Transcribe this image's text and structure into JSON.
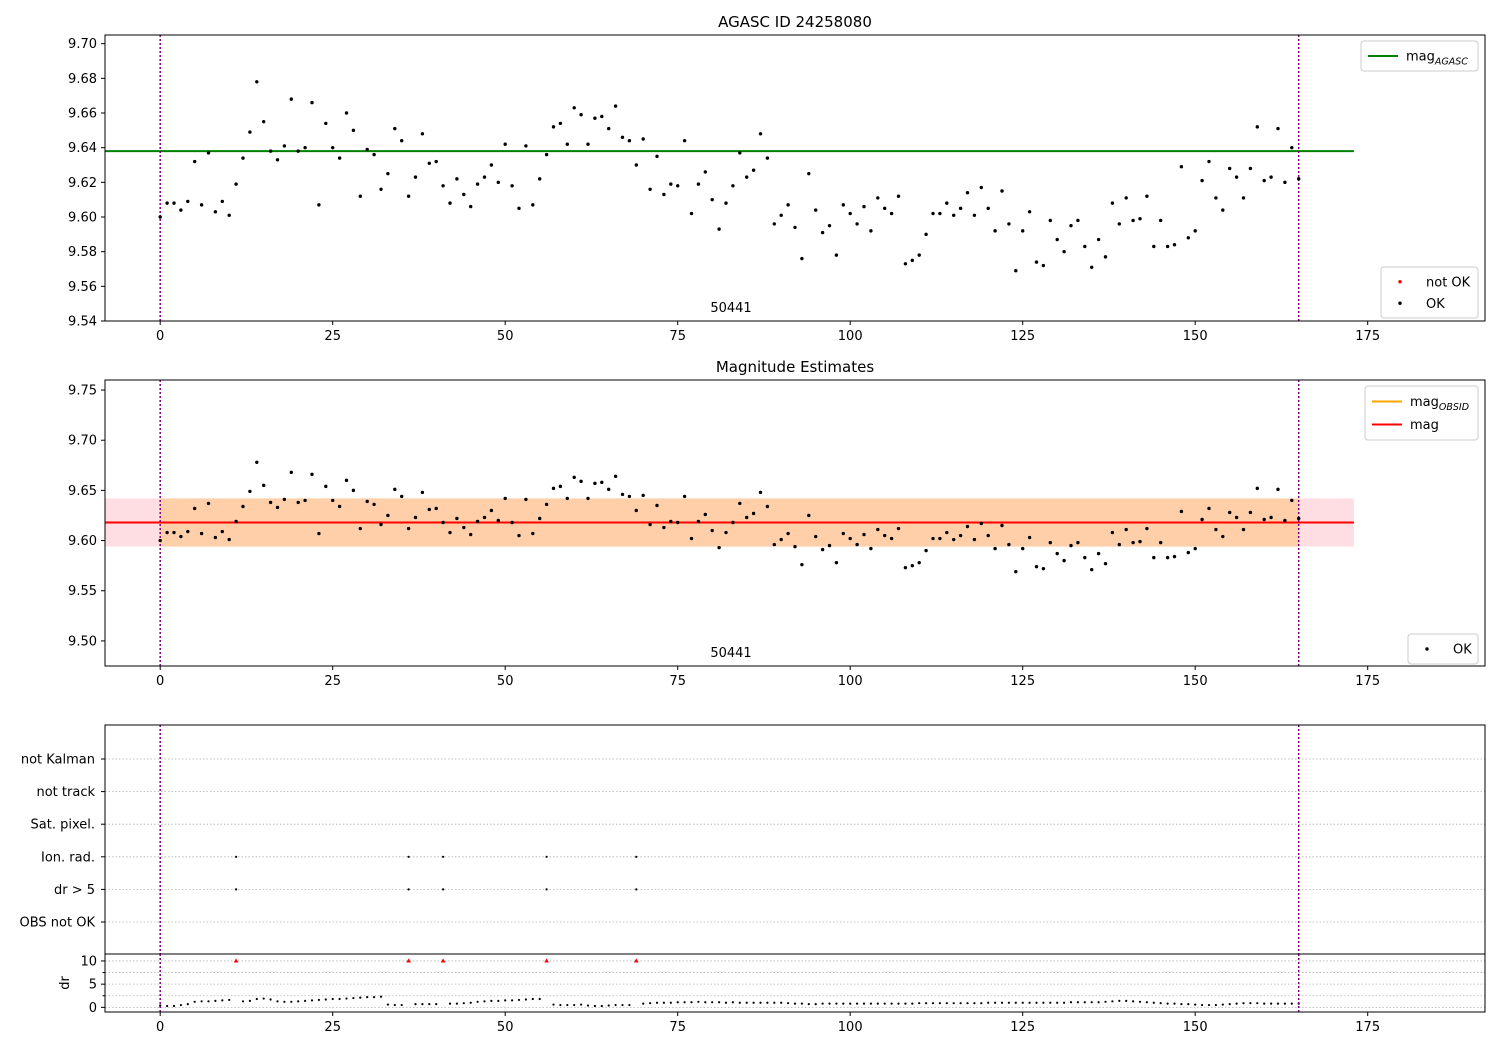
{
  "chart_data": [
    {
      "type": "scatter",
      "title": "AGASC ID 24258080",
      "annotation": "50441",
      "xlim": [
        -8,
        192
      ],
      "ylim": [
        9.54,
        9.705
      ],
      "xticks": [
        0,
        25,
        50,
        75,
        100,
        125,
        150,
        175
      ],
      "yticks": [
        9.54,
        9.56,
        9.58,
        9.6,
        9.62,
        9.64,
        9.66,
        9.68,
        9.7
      ],
      "ytick_decimals": 2,
      "obs_boundaries": [
        0,
        165
      ],
      "lines": [
        {
          "name": "mag",
          "sub": "AGASC",
          "value": 9.638,
          "x_range": [
            -8,
            173
          ],
          "color": "#008000"
        }
      ],
      "legend_upper": [
        {
          "name": "mag",
          "sub": "AGASC",
          "color": "#008000",
          "kind": "line"
        }
      ],
      "legend_lower": [
        {
          "name": "not OK",
          "color": "#ff0000",
          "kind": "marker"
        },
        {
          "name": "OK",
          "color": "#000000",
          "kind": "marker"
        }
      ],
      "series": [
        {
          "name": "OK",
          "color": "#000000",
          "values": [
            9.6,
            9.608,
            9.608,
            9.604,
            9.609,
            9.632,
            9.607,
            9.637,
            9.603,
            9.609,
            9.601,
            9.619,
            9.634,
            9.649,
            9.678,
            9.655,
            9.638,
            9.633,
            9.641,
            9.668,
            9.638,
            9.64,
            9.666,
            9.607,
            9.654,
            9.64,
            9.634,
            9.66,
            9.65,
            9.612,
            9.639,
            9.636,
            9.616,
            9.625,
            9.651,
            9.644,
            9.612,
            9.623,
            9.648,
            9.631,
            9.632,
            9.618,
            9.608,
            9.622,
            9.613,
            9.606,
            9.619,
            9.623,
            9.63,
            9.62,
            9.642,
            9.618,
            9.605,
            9.641,
            9.607,
            9.622,
            9.636,
            9.652,
            9.654,
            9.642,
            9.663,
            9.659,
            9.642,
            9.657,
            9.658,
            9.651,
            9.664,
            9.646,
            9.644,
            9.63,
            9.645,
            9.616,
            9.635,
            9.613,
            9.619,
            9.618,
            9.644,
            9.602,
            9.619,
            9.626,
            9.61,
            9.593,
            9.608,
            9.618,
            9.637,
            9.623,
            9.627,
            9.648,
            9.634,
            9.596,
            9.601,
            9.607,
            9.594,
            9.576,
            9.625,
            9.604,
            9.591,
            9.595,
            9.578,
            9.607,
            9.602,
            9.596,
            9.606,
            9.592,
            9.611,
            9.605,
            9.602,
            9.612,
            9.573,
            9.575,
            9.578,
            9.59,
            9.602,
            9.602,
            9.608,
            9.601,
            9.605,
            9.614,
            9.601,
            9.617,
            9.605,
            9.592,
            9.615,
            9.596,
            9.569,
            9.592,
            9.603,
            9.574,
            9.572,
            9.598,
            9.587,
            9.58,
            9.595,
            9.598,
            9.583,
            9.571,
            9.587,
            9.577,
            9.608,
            9.596,
            9.611,
            9.598,
            9.599,
            9.612,
            9.583,
            9.598,
            9.583,
            9.584,
            9.629,
            9.588,
            9.592,
            9.621,
            9.632,
            9.611,
            9.604,
            9.628,
            9.623,
            9.611,
            9.628,
            9.652,
            9.621,
            9.623,
            9.651,
            9.62,
            9.64,
            9.622
          ]
        }
      ]
    },
    {
      "type": "scatter",
      "title": "Magnitude Estimates",
      "annotation": "50441",
      "xlim": [
        -8,
        192
      ],
      "ylim": [
        9.475,
        9.76
      ],
      "xticks": [
        0,
        25,
        50,
        75,
        100,
        125,
        150,
        175
      ],
      "yticks": [
        9.5,
        9.55,
        9.6,
        9.65,
        9.7,
        9.75
      ],
      "ytick_decimals": 2,
      "obs_boundaries": [
        0,
        165
      ],
      "bands": [
        {
          "name": "mag range",
          "y_range": [
            9.594,
            9.642
          ],
          "x_range": [
            -8,
            173
          ],
          "color": "#ffb6c1",
          "opacity": 0.45
        },
        {
          "name": "mag OBSID range",
          "y_range": [
            9.594,
            9.642
          ],
          "x_range": [
            0,
            165
          ],
          "color": "#ffa500",
          "opacity": 0.25
        }
      ],
      "lines": [
        {
          "name": "mag",
          "sub": "OBSID",
          "value": 9.618,
          "x_range": [
            0,
            165
          ],
          "color": "#ffa500"
        },
        {
          "name": "mag",
          "sub": "",
          "value": 9.618,
          "x_range": [
            -8,
            173
          ],
          "color": "#ff0000"
        }
      ],
      "legend_upper": [
        {
          "name": "mag",
          "sub": "OBSID",
          "color": "#ffa500",
          "kind": "line"
        },
        {
          "name": "mag",
          "sub": "",
          "color": "#ff0000",
          "kind": "line"
        }
      ],
      "legend_lower": [
        {
          "name": "OK",
          "color": "#000000",
          "kind": "marker"
        }
      ],
      "series": [
        {
          "name": "OK",
          "color": "#000000",
          "values": "same as AGASC panel"
        }
      ]
    },
    {
      "type": "scatter",
      "title": "",
      "xlim": [
        -8,
        192
      ],
      "xticks": [
        0,
        25,
        50,
        75,
        100,
        125,
        150,
        175
      ],
      "obs_boundaries": [
        0,
        165
      ],
      "flag_categories": [
        "not Kalman",
        "not track",
        "Sat. pixel.",
        "Ion. rad.",
        "dr > 5",
        "OBS not OK"
      ],
      "flags": {
        "Ion. rad.": [
          11,
          36,
          41,
          56,
          69
        ],
        "dr > 5": [
          11,
          36,
          41,
          56,
          69
        ]
      },
      "dr_panel": {
        "ylabel": "dr",
        "ylim": [
          -1,
          11.5
        ],
        "yticks": [
          0,
          5,
          10
        ],
        "outlier_x": [
          11,
          36,
          41,
          56,
          69
        ],
        "outlier_value": 10,
        "outlier_color": "#ff0000",
        "values": [
          0.4,
          0.3,
          0.3,
          0.5,
          0.7,
          1.2,
          1.3,
          1.3,
          1.4,
          1.5,
          1.6,
          10.0,
          1.3,
          1.4,
          1.8,
          1.9,
          1.7,
          1.3,
          1.2,
          1.2,
          1.3,
          1.4,
          1.5,
          1.6,
          1.7,
          1.8,
          1.8,
          1.9,
          2.0,
          2.1,
          2.2,
          2.2,
          2.3,
          0.6,
          0.5,
          0.5,
          10.0,
          0.7,
          0.7,
          0.7,
          0.7,
          10.0,
          0.8,
          0.8,
          0.9,
          1.0,
          1.2,
          1.3,
          1.4,
          1.4,
          1.5,
          1.5,
          1.6,
          1.7,
          1.8,
          1.8,
          10.0,
          0.6,
          0.5,
          0.5,
          0.5,
          0.6,
          0.4,
          0.3,
          0.3,
          0.4,
          0.5,
          0.5,
          0.5,
          10.0,
          0.8,
          0.9,
          1.0,
          1.0,
          1.0,
          1.1,
          1.1,
          1.1,
          1.2,
          1.1,
          1.1,
          1.1,
          1.0,
          1.1,
          1.0,
          1.0,
          1.0,
          1.0,
          1.0,
          1.0,
          1.0,
          0.9,
          0.8,
          0.8,
          0.7,
          0.7,
          0.8,
          0.8,
          0.8,
          0.8,
          0.8,
          0.8,
          0.8,
          0.8,
          0.8,
          0.8,
          0.8,
          0.8,
          0.8,
          0.8,
          0.9,
          0.9,
          0.9,
          0.9,
          0.9,
          0.9,
          0.9,
          0.9,
          0.9,
          0.9,
          1.0,
          1.0,
          1.0,
          1.0,
          1.0,
          1.0,
          1.0,
          1.0,
          1.0,
          1.0,
          1.0,
          1.0,
          1.1,
          1.1,
          1.1,
          1.1,
          1.1,
          1.2,
          1.3,
          1.4,
          1.4,
          1.3,
          1.2,
          1.1,
          1.0,
          0.9,
          0.8,
          0.8,
          0.7,
          0.7,
          0.6,
          0.5,
          0.5,
          0.5,
          0.6,
          0.7,
          0.8,
          0.9,
          0.9,
          0.9,
          0.8,
          0.8,
          0.8,
          0.8,
          0.8,
          0.8
        ]
      }
    }
  ]
}
